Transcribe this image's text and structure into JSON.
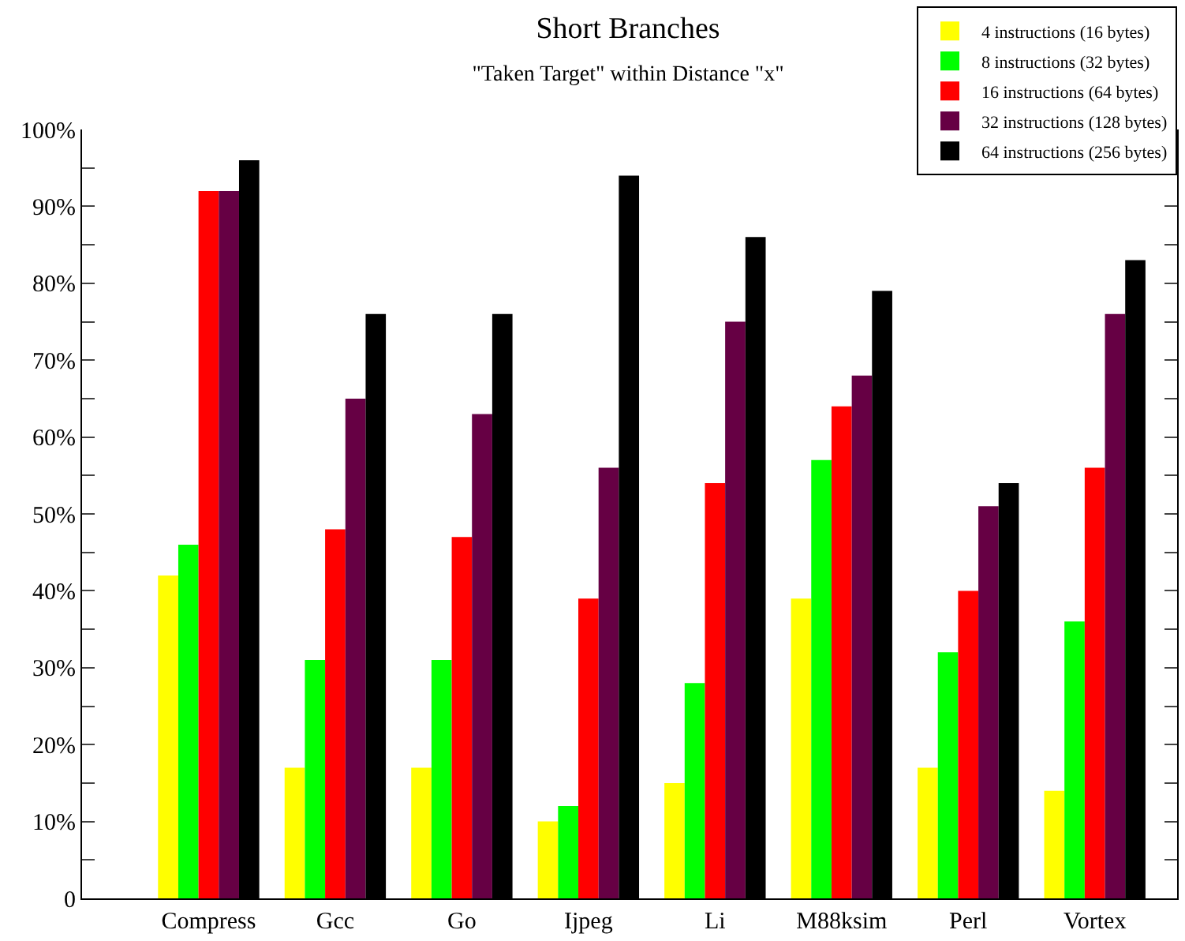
{
  "chart_data": {
    "type": "bar",
    "title": "Short Branches",
    "subtitle": "\"Taken Target\" within Distance \"x\"",
    "categories": [
      "Compress",
      "Gcc",
      "Go",
      "Ijpeg",
      "Li",
      "M88ksim",
      "Perl",
      "Vortex"
    ],
    "series": [
      {
        "name": "4 instructions (16 bytes)",
        "color": "#ffff00",
        "values": [
          42,
          17,
          17,
          10,
          15,
          39,
          17,
          14
        ]
      },
      {
        "name": "8 instructions (32 bytes)",
        "color": "#00ff00",
        "values": [
          46,
          31,
          31,
          12,
          28,
          57,
          32,
          36
        ]
      },
      {
        "name": "16 instructions (64 bytes)",
        "color": "#ff0000",
        "values": [
          92,
          48,
          47,
          39,
          54,
          64,
          40,
          56
        ]
      },
      {
        "name": "32 instructions (128 bytes)",
        "color": "#660044",
        "values": [
          92,
          65,
          63,
          56,
          75,
          68,
          51,
          76
        ]
      },
      {
        "name": "64 instructions (256 bytes)",
        "color": "#000000",
        "values": [
          96,
          76,
          76,
          94,
          86,
          79,
          54,
          83
        ]
      }
    ],
    "ylim": [
      0,
      100
    ],
    "yticks": [
      0,
      {
        "value": 5,
        "label": null
      },
      {
        "value": 10,
        "label": "10%"
      },
      {
        "value": 15,
        "label": null
      },
      {
        "value": 20,
        "label": "20%"
      },
      {
        "value": 25,
        "label": null
      },
      {
        "value": 30,
        "label": "30%"
      },
      {
        "value": 35,
        "label": null
      },
      {
        "value": 40,
        "label": "40%"
      },
      {
        "value": 45,
        "label": null
      },
      {
        "value": 50,
        "label": "50%"
      },
      {
        "value": 55,
        "label": null
      },
      {
        "value": 60,
        "label": "60%"
      },
      {
        "value": 65,
        "label": null
      },
      {
        "value": 70,
        "label": "70%"
      },
      {
        "value": 75,
        "label": null
      },
      {
        "value": 80,
        "label": "80%"
      },
      {
        "value": 85,
        "label": null
      },
      {
        "value": 90,
        "label": "90%"
      },
      {
        "value": 95,
        "label": null
      },
      {
        "value": 100,
        "label": "100%"
      }
    ],
    "legend": "top right"
  }
}
